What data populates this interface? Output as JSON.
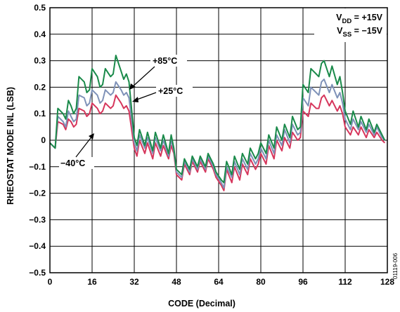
{
  "chart_data": {
    "type": "line",
    "xlabel": "CODE (Decimal)",
    "ylabel": "RHEOSTAT MODE INL (LSB)",
    "xlim": [
      0,
      128
    ],
    "ylim": [
      -0.5,
      0.5
    ],
    "xticks": [
      "0",
      "16",
      "32",
      "48",
      "64",
      "80",
      "96",
      "112",
      "128"
    ],
    "yticks": [
      "0.5",
      "0.4",
      "0.3",
      "0.2",
      "0.1",
      "0",
      "−0.1",
      "−0.2",
      "−0.3",
      "−0.4",
      "−0.5"
    ],
    "grid": true,
    "figure_id": "01119-006",
    "supply_annotation": {
      "vdd_main": "V",
      "vdd_sub": "DD",
      "vdd_value": " = +15V",
      "vss_main": "V",
      "vss_sub": "SS",
      "vss_value": " = −15V"
    },
    "series": [
      {
        "label": "+85°C",
        "color": "#1a8a4a",
        "points": [
          [
            0,
            -0.01
          ],
          [
            2,
            -0.03
          ],
          [
            3,
            0.12
          ],
          [
            5,
            0.1
          ],
          [
            6,
            0.08
          ],
          [
            7,
            0.15
          ],
          [
            8,
            0.13
          ],
          [
            9,
            0.1
          ],
          [
            10,
            0.12
          ],
          [
            11,
            0.24
          ],
          [
            13,
            0.22
          ],
          [
            14,
            0.18
          ],
          [
            15,
            0.19
          ],
          [
            16,
            0.27
          ],
          [
            18,
            0.24
          ],
          [
            19,
            0.2
          ],
          [
            20,
            0.21
          ],
          [
            21,
            0.27
          ],
          [
            23,
            0.24
          ],
          [
            24,
            0.25
          ],
          [
            25,
            0.32
          ],
          [
            27,
            0.26
          ],
          [
            28,
            0.23
          ],
          [
            29,
            0.25
          ],
          [
            30,
            0.22
          ],
          [
            32,
            0.01
          ],
          [
            33,
            -0.02
          ],
          [
            34,
            0.04
          ],
          [
            36,
            -0.02
          ],
          [
            37,
            0.03
          ],
          [
            39,
            -0.04
          ],
          [
            40,
            0.03
          ],
          [
            42,
            -0.03
          ],
          [
            43,
            0.02
          ],
          [
            45,
            -0.05
          ],
          [
            46,
            0.02
          ],
          [
            47,
            -0.03
          ],
          [
            48,
            -0.11
          ],
          [
            50,
            -0.13
          ],
          [
            51,
            -0.07
          ],
          [
            53,
            -0.11
          ],
          [
            54,
            -0.06
          ],
          [
            56,
            -0.1
          ],
          [
            57,
            -0.06
          ],
          [
            59,
            -0.1
          ],
          [
            60,
            -0.05
          ],
          [
            62,
            -0.09
          ],
          [
            63,
            -0.12
          ],
          [
            65,
            -0.15
          ],
          [
            66,
            -0.16
          ],
          [
            67,
            -0.08
          ],
          [
            69,
            -0.13
          ],
          [
            70,
            -0.06
          ],
          [
            72,
            -0.11
          ],
          [
            73,
            -0.05
          ],
          [
            75,
            -0.09
          ],
          [
            76,
            -0.03
          ],
          [
            78,
            -0.07
          ],
          [
            79,
            -0.05
          ],
          [
            80,
            -0.01
          ],
          [
            82,
            -0.05
          ],
          [
            83,
            0.02
          ],
          [
            85,
            -0.03
          ],
          [
            86,
            0.05
          ],
          [
            88,
            0.0
          ],
          [
            89,
            0.06
          ],
          [
            91,
            0.01
          ],
          [
            92,
            0.09
          ],
          [
            94,
            0.04
          ],
          [
            95,
            0.05
          ],
          [
            96,
            0.21
          ],
          [
            98,
            0.18
          ],
          [
            99,
            0.27
          ],
          [
            101,
            0.25
          ],
          [
            102,
            0.24
          ],
          [
            103,
            0.29
          ],
          [
            104,
            0.3
          ],
          [
            106,
            0.24
          ],
          [
            107,
            0.28
          ],
          [
            109,
            0.21
          ],
          [
            110,
            0.24
          ],
          [
            111,
            0.18
          ],
          [
            112,
            0.11
          ],
          [
            114,
            0.06
          ],
          [
            115,
            0.11
          ],
          [
            117,
            0.05
          ],
          [
            118,
            0.09
          ],
          [
            120,
            0.04
          ],
          [
            121,
            0.08
          ],
          [
            123,
            0.03
          ],
          [
            124,
            0.06
          ],
          [
            126,
            0.02
          ],
          [
            127,
            0.0
          ]
        ]
      },
      {
        "label": "+25°C",
        "color": "#7f92b8",
        "points": [
          [
            0,
            -0.01
          ],
          [
            2,
            -0.03
          ],
          [
            3,
            0.09
          ],
          [
            5,
            0.07
          ],
          [
            6,
            0.05
          ],
          [
            7,
            0.11
          ],
          [
            8,
            0.09
          ],
          [
            9,
            0.07
          ],
          [
            10,
            0.08
          ],
          [
            11,
            0.17
          ],
          [
            13,
            0.16
          ],
          [
            14,
            0.13
          ],
          [
            15,
            0.14
          ],
          [
            16,
            0.19
          ],
          [
            18,
            0.17
          ],
          [
            19,
            0.14
          ],
          [
            20,
            0.15
          ],
          [
            21,
            0.19
          ],
          [
            23,
            0.17
          ],
          [
            24,
            0.18
          ],
          [
            25,
            0.22
          ],
          [
            27,
            0.19
          ],
          [
            28,
            0.17
          ],
          [
            29,
            0.18
          ],
          [
            30,
            0.16
          ],
          [
            32,
            -0.01
          ],
          [
            33,
            -0.04
          ],
          [
            34,
            0.02
          ],
          [
            36,
            -0.03
          ],
          [
            37,
            0.01
          ],
          [
            39,
            -0.05
          ],
          [
            40,
            0.01
          ],
          [
            42,
            -0.04
          ],
          [
            43,
            0.0
          ],
          [
            45,
            -0.06
          ],
          [
            46,
            0.0
          ],
          [
            47,
            -0.04
          ],
          [
            48,
            -0.12
          ],
          [
            50,
            -0.14
          ],
          [
            51,
            -0.08
          ],
          [
            53,
            -0.12
          ],
          [
            54,
            -0.07
          ],
          [
            56,
            -0.11
          ],
          [
            57,
            -0.07
          ],
          [
            59,
            -0.11
          ],
          [
            60,
            -0.06
          ],
          [
            62,
            -0.1
          ],
          [
            63,
            -0.13
          ],
          [
            65,
            -0.16
          ],
          [
            66,
            -0.18
          ],
          [
            67,
            -0.1
          ],
          [
            69,
            -0.14
          ],
          [
            70,
            -0.08
          ],
          [
            72,
            -0.13
          ],
          [
            73,
            -0.07
          ],
          [
            75,
            -0.11
          ],
          [
            76,
            -0.05
          ],
          [
            78,
            -0.09
          ],
          [
            79,
            -0.07
          ],
          [
            80,
            -0.03
          ],
          [
            82,
            -0.07
          ],
          [
            83,
            0.0
          ],
          [
            85,
            -0.05
          ],
          [
            86,
            0.02
          ],
          [
            88,
            -0.02
          ],
          [
            89,
            0.04
          ],
          [
            91,
            -0.01
          ],
          [
            92,
            0.06
          ],
          [
            94,
            0.02
          ],
          [
            95,
            0.03
          ],
          [
            96,
            0.16
          ],
          [
            98,
            0.13
          ],
          [
            99,
            0.2
          ],
          [
            101,
            0.18
          ],
          [
            102,
            0.17
          ],
          [
            103,
            0.22
          ],
          [
            104,
            0.23
          ],
          [
            106,
            0.18
          ],
          [
            107,
            0.21
          ],
          [
            109,
            0.16
          ],
          [
            110,
            0.18
          ],
          [
            111,
            0.14
          ],
          [
            112,
            0.08
          ],
          [
            114,
            0.04
          ],
          [
            115,
            0.08
          ],
          [
            117,
            0.04
          ],
          [
            118,
            0.07
          ],
          [
            120,
            0.03
          ],
          [
            121,
            0.06
          ],
          [
            123,
            0.02
          ],
          [
            124,
            0.05
          ],
          [
            126,
            0.01
          ],
          [
            127,
            0.0
          ]
        ]
      },
      {
        "label": "−40°C",
        "color": "#d6365c",
        "points": [
          [
            0,
            -0.01
          ],
          [
            2,
            -0.03
          ],
          [
            3,
            0.07
          ],
          [
            5,
            0.06
          ],
          [
            6,
            0.04
          ],
          [
            7,
            0.08
          ],
          [
            8,
            0.07
          ],
          [
            9,
            0.05
          ],
          [
            10,
            0.06
          ],
          [
            11,
            0.12
          ],
          [
            13,
            0.11
          ],
          [
            14,
            0.09
          ],
          [
            15,
            0.1
          ],
          [
            16,
            0.14
          ],
          [
            18,
            0.12
          ],
          [
            19,
            0.1
          ],
          [
            20,
            0.11
          ],
          [
            21,
            0.14
          ],
          [
            23,
            0.12
          ],
          [
            24,
            0.13
          ],
          [
            25,
            0.17
          ],
          [
            27,
            0.14
          ],
          [
            28,
            0.12
          ],
          [
            29,
            0.13
          ],
          [
            30,
            0.11
          ],
          [
            32,
            -0.03
          ],
          [
            33,
            -0.06
          ],
          [
            34,
            0.0
          ],
          [
            36,
            -0.05
          ],
          [
            37,
            -0.01
          ],
          [
            39,
            -0.07
          ],
          [
            40,
            -0.01
          ],
          [
            42,
            -0.06
          ],
          [
            43,
            -0.02
          ],
          [
            45,
            -0.07
          ],
          [
            46,
            -0.02
          ],
          [
            47,
            -0.05
          ],
          [
            48,
            -0.13
          ],
          [
            50,
            -0.15
          ],
          [
            51,
            -0.09
          ],
          [
            53,
            -0.13
          ],
          [
            54,
            -0.08
          ],
          [
            56,
            -0.12
          ],
          [
            57,
            -0.08
          ],
          [
            59,
            -0.12
          ],
          [
            60,
            -0.07
          ],
          [
            62,
            -0.11
          ],
          [
            63,
            -0.14
          ],
          [
            65,
            -0.17
          ],
          [
            66,
            -0.19
          ],
          [
            67,
            -0.11
          ],
          [
            69,
            -0.16
          ],
          [
            70,
            -0.1
          ],
          [
            72,
            -0.15
          ],
          [
            73,
            -0.09
          ],
          [
            75,
            -0.13
          ],
          [
            76,
            -0.07
          ],
          [
            78,
            -0.11
          ],
          [
            79,
            -0.09
          ],
          [
            80,
            -0.05
          ],
          [
            82,
            -0.09
          ],
          [
            83,
            -0.02
          ],
          [
            85,
            -0.07
          ],
          [
            86,
            0.0
          ],
          [
            88,
            -0.04
          ],
          [
            89,
            0.01
          ],
          [
            91,
            -0.03
          ],
          [
            92,
            0.03
          ],
          [
            94,
            0.0
          ],
          [
            95,
            0.01
          ],
          [
            96,
            0.11
          ],
          [
            98,
            0.09
          ],
          [
            99,
            0.14
          ],
          [
            101,
            0.12
          ],
          [
            102,
            0.12
          ],
          [
            103,
            0.16
          ],
          [
            104,
            0.17
          ],
          [
            106,
            0.13
          ],
          [
            107,
            0.15
          ],
          [
            109,
            0.11
          ],
          [
            110,
            0.13
          ],
          [
            111,
            0.1
          ],
          [
            112,
            0.05
          ],
          [
            114,
            0.02
          ],
          [
            115,
            0.05
          ],
          [
            117,
            0.02
          ],
          [
            118,
            0.05
          ],
          [
            120,
            0.01
          ],
          [
            121,
            0.04
          ],
          [
            123,
            0.01
          ],
          [
            124,
            0.03
          ],
          [
            126,
            0.0
          ],
          [
            127,
            -0.01
          ]
        ]
      }
    ]
  }
}
